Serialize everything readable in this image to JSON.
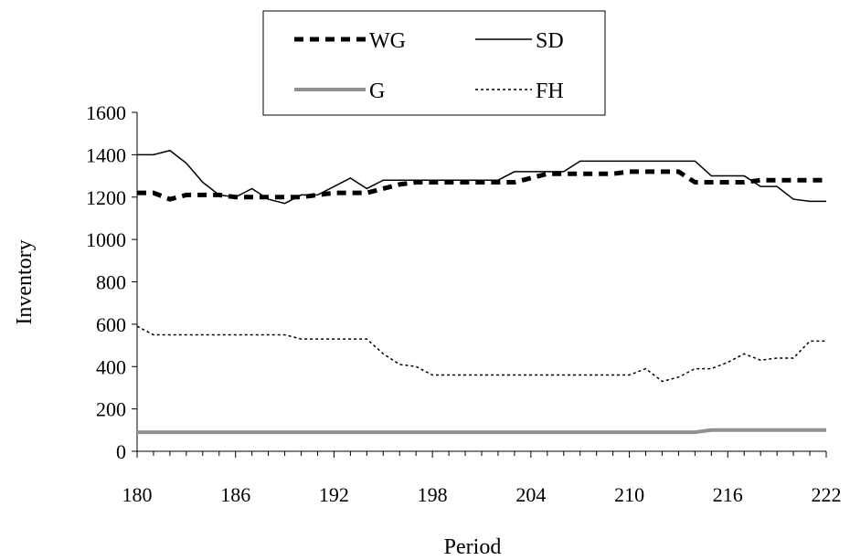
{
  "chart_data": {
    "type": "line",
    "xlabel": "Period",
    "ylabel": "Inventory",
    "xlim": [
      180,
      222
    ],
    "ylim": [
      0,
      1600
    ],
    "x_ticks": [
      "180",
      "186",
      "192",
      "198",
      "204",
      "210",
      "216",
      "222"
    ],
    "y_ticks": [
      "0",
      "200",
      "400",
      "600",
      "800",
      "1000",
      "1200",
      "1400",
      "1600"
    ],
    "grid": false,
    "legend_position": "top-center",
    "x": [
      180,
      181,
      182,
      183,
      184,
      185,
      186,
      187,
      188,
      189,
      190,
      191,
      192,
      193,
      194,
      195,
      196,
      197,
      198,
      199,
      200,
      201,
      202,
      203,
      204,
      205,
      206,
      207,
      208,
      209,
      210,
      211,
      212,
      213,
      214,
      215,
      216,
      217,
      218,
      219,
      220,
      221,
      222
    ],
    "series": [
      {
        "name": "WG",
        "style": "dashed-thick",
        "color": "#000000",
        "values": [
          1220,
          1220,
          1190,
          1210,
          1210,
          1210,
          1200,
          1200,
          1200,
          1200,
          1200,
          1210,
          1220,
          1220,
          1220,
          1240,
          1260,
          1270,
          1270,
          1270,
          1270,
          1270,
          1270,
          1270,
          1290,
          1310,
          1310,
          1310,
          1310,
          1310,
          1320,
          1320,
          1320,
          1320,
          1270,
          1270,
          1270,
          1270,
          1280,
          1280,
          1280,
          1280,
          1280
        ]
      },
      {
        "name": "SD",
        "style": "solid-thin",
        "color": "#000000",
        "values": [
          1400,
          1400,
          1420,
          1360,
          1270,
          1210,
          1200,
          1240,
          1190,
          1170,
          1210,
          1210,
          1250,
          1290,
          1240,
          1280,
          1280,
          1280,
          1280,
          1280,
          1280,
          1280,
          1280,
          1320,
          1320,
          1320,
          1320,
          1370,
          1370,
          1370,
          1370,
          1370,
          1370,
          1370,
          1370,
          1300,
          1300,
          1300,
          1250,
          1250,
          1190,
          1180,
          1180
        ]
      },
      {
        "name": "G",
        "style": "solid-thick-gray",
        "color": "#909090",
        "values": [
          90,
          90,
          90,
          90,
          90,
          90,
          90,
          90,
          90,
          90,
          90,
          90,
          90,
          90,
          90,
          90,
          90,
          90,
          90,
          90,
          90,
          90,
          90,
          90,
          90,
          90,
          90,
          90,
          90,
          90,
          90,
          90,
          90,
          90,
          90,
          100,
          100,
          100,
          100,
          100,
          100,
          100,
          100
        ]
      },
      {
        "name": "FH",
        "style": "dotted",
        "color": "#000000",
        "values": [
          590,
          550,
          550,
          550,
          550,
          550,
          550,
          550,
          550,
          550,
          530,
          530,
          530,
          530,
          530,
          460,
          410,
          400,
          360,
          360,
          360,
          360,
          360,
          360,
          360,
          360,
          360,
          360,
          360,
          360,
          360,
          390,
          330,
          350,
          390,
          390,
          420,
          460,
          430,
          440,
          440,
          520,
          520
        ]
      }
    ]
  }
}
